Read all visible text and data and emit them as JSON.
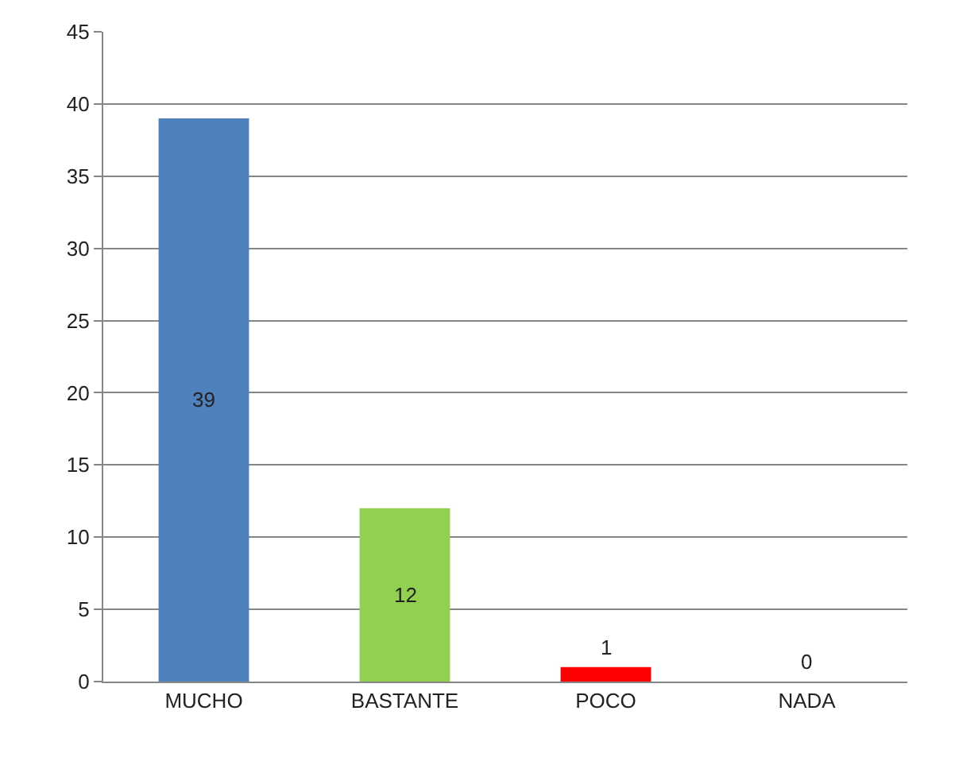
{
  "chart_data": {
    "type": "bar",
    "categories": [
      "MUCHO",
      "BASTANTE",
      "POCO",
      "NADA"
    ],
    "values": [
      39,
      12,
      1,
      0
    ],
    "colors": [
      "#4f81bd",
      "#92d050",
      "#ff0000",
      "#8064a2"
    ],
    "ylim": [
      0,
      45
    ],
    "yticks": [
      0,
      5,
      10,
      15,
      20,
      25,
      30,
      35,
      40,
      45
    ],
    "grid": "y",
    "data_labels": true
  }
}
